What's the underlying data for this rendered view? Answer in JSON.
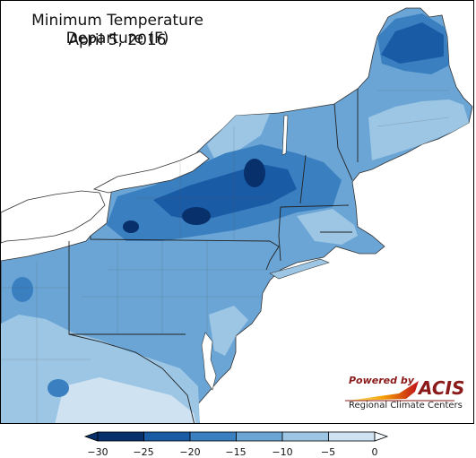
{
  "title_line1": "Minimum Temperature Departure (F)",
  "title_line2": "April 5, 2016",
  "logo": {
    "powered_by": "Powered by",
    "name": "ACIS",
    "subtitle": "Regional Climate Centers"
  },
  "legend": {
    "ticks": [
      "−30",
      "−25",
      "−20",
      "−15",
      "−10",
      "−5",
      "0"
    ],
    "colors": [
      "#08306b",
      "#1a5ba6",
      "#3a7fc0",
      "#6aa5d6",
      "#9cc6e4",
      "#cfe2f2",
      "#f3f8fd"
    ]
  },
  "colors": {
    "water": "#ffffff",
    "outside": "#ffffff",
    "land_base": "#6aa5d6",
    "border": "#333333"
  }
}
